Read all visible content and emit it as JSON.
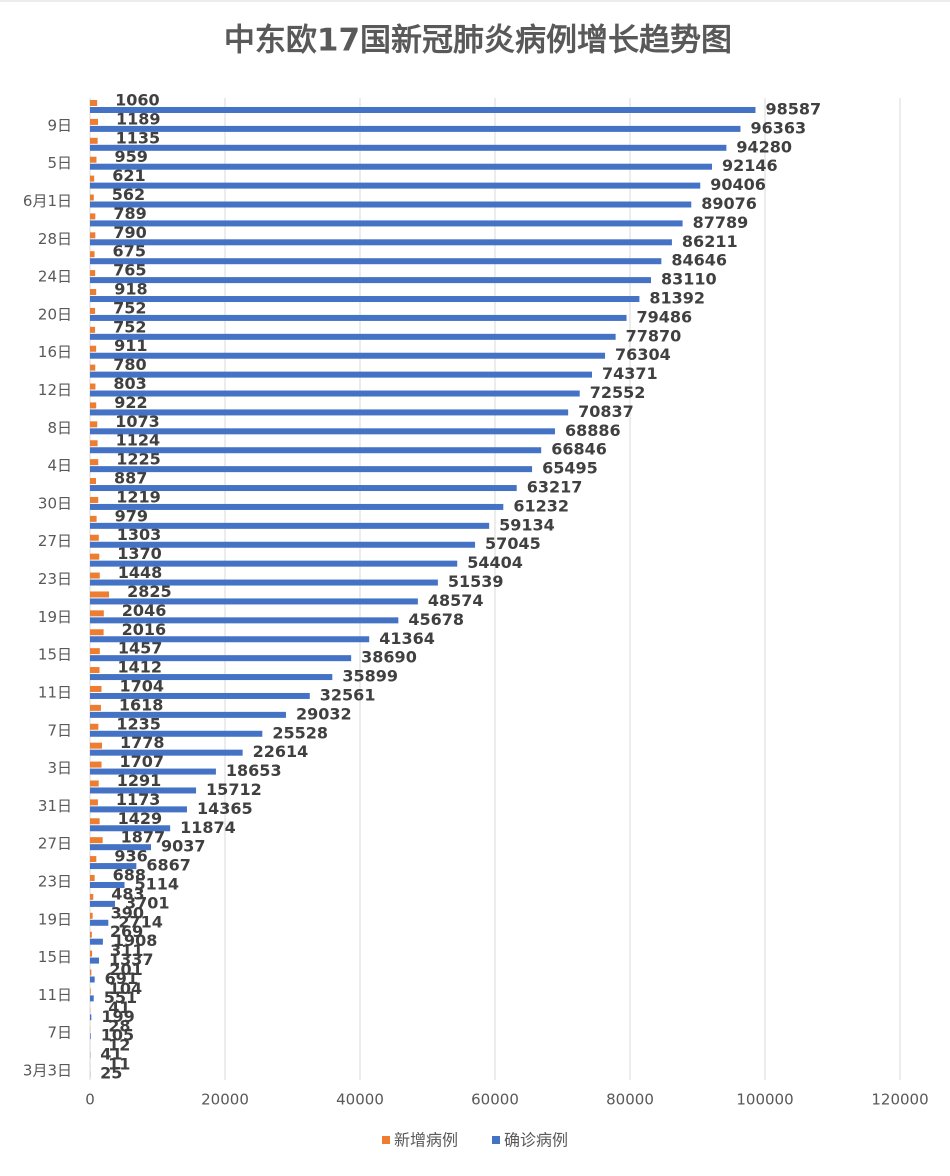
{
  "chart_data": {
    "type": "hbar",
    "title": "中东欧17国新冠肺炎病例增长趋势图",
    "categories": [
      "3月3日",
      null,
      "7日",
      null,
      "11日",
      null,
      "15日",
      null,
      "19日",
      null,
      "23日",
      null,
      "27日",
      null,
      "31日",
      null,
      "3日",
      null,
      "7日",
      null,
      "11日",
      null,
      "15日",
      null,
      "19日",
      null,
      "23日",
      null,
      "27日",
      null,
      "30日",
      null,
      "4日",
      null,
      "8日",
      null,
      "12日",
      null,
      "16日",
      null,
      "20日",
      null,
      "24日",
      null,
      "28日",
      null,
      "6月1日",
      null,
      "5日",
      null,
      "9日",
      null
    ],
    "series": [
      {
        "name": "新增病例",
        "color": "#ed7d31",
        "values": [
          11,
          12,
          28,
          41,
          104,
          201,
          311,
          269,
          390,
          483,
          688,
          936,
          1877,
          1429,
          1173,
          1291,
          1707,
          1778,
          1235,
          1618,
          1704,
          1412,
          1457,
          2016,
          2046,
          2825,
          1448,
          1370,
          1303,
          979,
          1219,
          887,
          1225,
          1124,
          1073,
          922,
          803,
          780,
          911,
          752,
          752,
          918,
          765,
          675,
          790,
          789,
          562,
          621,
          959,
          1135,
          1189,
          1060
        ]
      },
      {
        "name": "确诊病例",
        "color": "#4472c4",
        "values": [
          25,
          41,
          105,
          199,
          551,
          691,
          1337,
          1908,
          2714,
          3701,
          5114,
          6867,
          9037,
          11874,
          14365,
          15712,
          18653,
          22614,
          25528,
          29032,
          32561,
          35899,
          38690,
          41364,
          45678,
          48574,
          51539,
          54404,
          57045,
          59134,
          61232,
          63217,
          65495,
          66846,
          68886,
          70837,
          72552,
          74371,
          76304,
          77870,
          79486,
          81392,
          83110,
          84646,
          86211,
          87789,
          89076,
          90406,
          92146,
          94280,
          96363,
          98587
        ]
      }
    ],
    "xlim": [
      0,
      120000
    ],
    "xticks": [
      0,
      20000,
      40000,
      60000,
      80000,
      100000,
      120000
    ],
    "grid": true,
    "legend": "bottom"
  }
}
